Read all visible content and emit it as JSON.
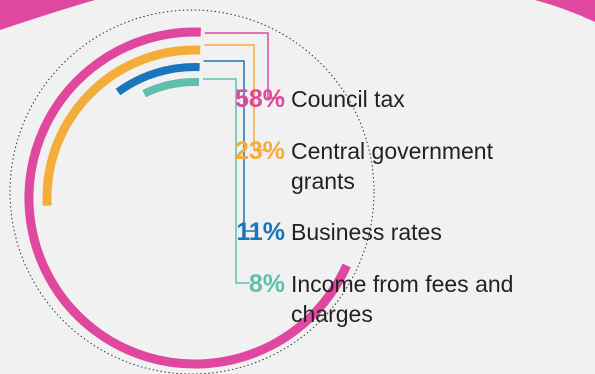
{
  "chart_data": {
    "type": "radial-bar",
    "title": "",
    "series": [
      {
        "name": "Council tax",
        "value": 58,
        "value_label": "58%",
        "color": "#e0479e"
      },
      {
        "name": "Central government grants",
        "value": 23,
        "value_label": "23%",
        "color": "#f5ad3a"
      },
      {
        "name": "Business rates",
        "value": 11,
        "value_label": "11%",
        "color": "#1a75bb"
      },
      {
        "name": "Income from fees and charges",
        "value": 8,
        "value_label": "8%",
        "color": "#5fbfad"
      }
    ],
    "legend": "right"
  },
  "page": {
    "background": "#f1f1f1",
    "accent_top": "#e0479e"
  }
}
